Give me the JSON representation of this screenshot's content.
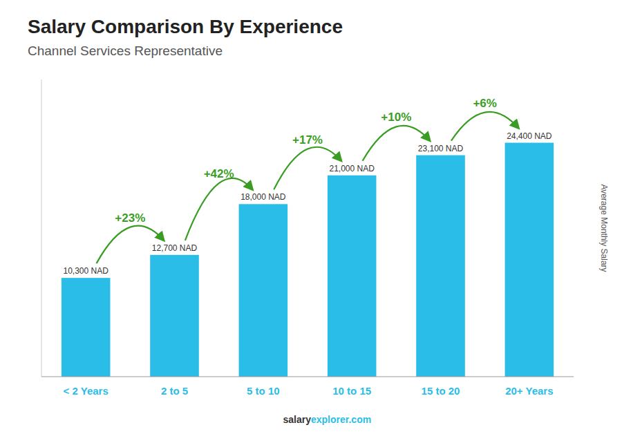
{
  "chart_data": {
    "type": "bar",
    "title": "Salary Comparison By Experience",
    "subtitle": "Channel Services Representative",
    "categories": [
      "< 2 Years",
      "2 to 5",
      "5 to 10",
      "10 to 15",
      "15 to 20",
      "20+ Years"
    ],
    "values": [
      10300,
      12700,
      18000,
      21000,
      23100,
      24400
    ],
    "value_labels": [
      "10,300 NAD",
      "12,700 NAD",
      "18,000 NAD",
      "21,000 NAD",
      "23,100 NAD",
      "24,400 NAD"
    ],
    "data_labels": true,
    "annotations": [
      "+23%",
      "+42%",
      "+17%",
      "+10%",
      "+6%"
    ],
    "color": "#29bde8",
    "y_label": "Average Monthly Salary",
    "footer": [
      "salary",
      "explorer.com"
    ],
    "ylim": [
      0,
      31000
    ],
    "tick_labels": "x",
    "grid": false
  }
}
